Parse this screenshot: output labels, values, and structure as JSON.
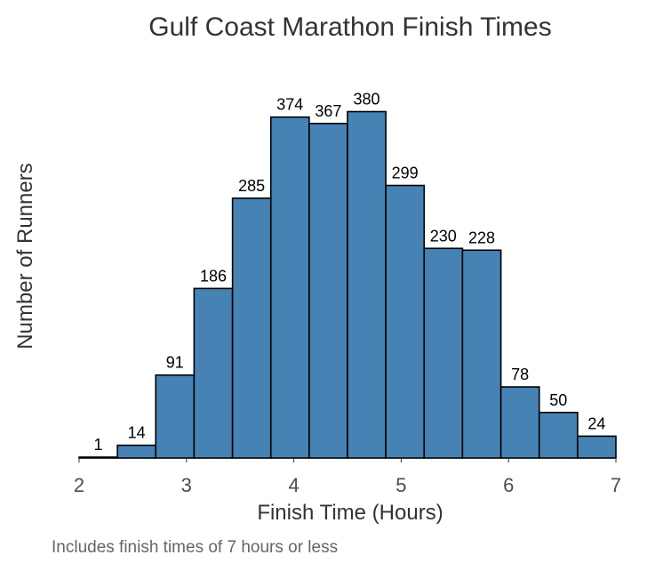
{
  "chart_data": {
    "type": "bar",
    "title": "Gulf Coast Marathon Finish Times",
    "xlabel": "Finish Time (Hours)",
    "ylabel": "Number of Runners",
    "caption": "Includes finish times of 7 hours or less",
    "bin_width": 0.3571,
    "xlim": [
      2,
      7
    ],
    "ylim": [
      0,
      400
    ],
    "x_ticks": [
      2,
      3,
      4,
      5,
      6,
      7
    ],
    "x_tick_labels": [
      "2",
      "3",
      "4",
      "5",
      "6",
      "7"
    ],
    "bins": [
      {
        "start": 2.0,
        "end": 2.357,
        "value": 1,
        "label": "1"
      },
      {
        "start": 2.357,
        "end": 2.714,
        "value": 14,
        "label": "14"
      },
      {
        "start": 2.714,
        "end": 3.071,
        "value": 91,
        "label": "91"
      },
      {
        "start": 3.071,
        "end": 3.429,
        "value": 186,
        "label": "186"
      },
      {
        "start": 3.429,
        "end": 3.786,
        "value": 285,
        "label": "285"
      },
      {
        "start": 3.786,
        "end": 4.143,
        "value": 374,
        "label": "374"
      },
      {
        "start": 4.143,
        "end": 4.5,
        "value": 367,
        "label": "367"
      },
      {
        "start": 4.5,
        "end": 4.857,
        "value": 380,
        "label": "380"
      },
      {
        "start": 4.857,
        "end": 5.214,
        "value": 299,
        "label": "299"
      },
      {
        "start": 5.214,
        "end": 5.571,
        "value": 230,
        "label": "230"
      },
      {
        "start": 5.571,
        "end": 5.929,
        "value": 228,
        "label": "228"
      },
      {
        "start": 5.929,
        "end": 6.286,
        "value": 78,
        "label": "78"
      },
      {
        "start": 6.286,
        "end": 6.643,
        "value": 50,
        "label": "50"
      },
      {
        "start": 6.643,
        "end": 7.0,
        "value": 24,
        "label": "24"
      }
    ],
    "bar_fill": "#4682B4",
    "bar_stroke": "#000000",
    "grid": false
  }
}
